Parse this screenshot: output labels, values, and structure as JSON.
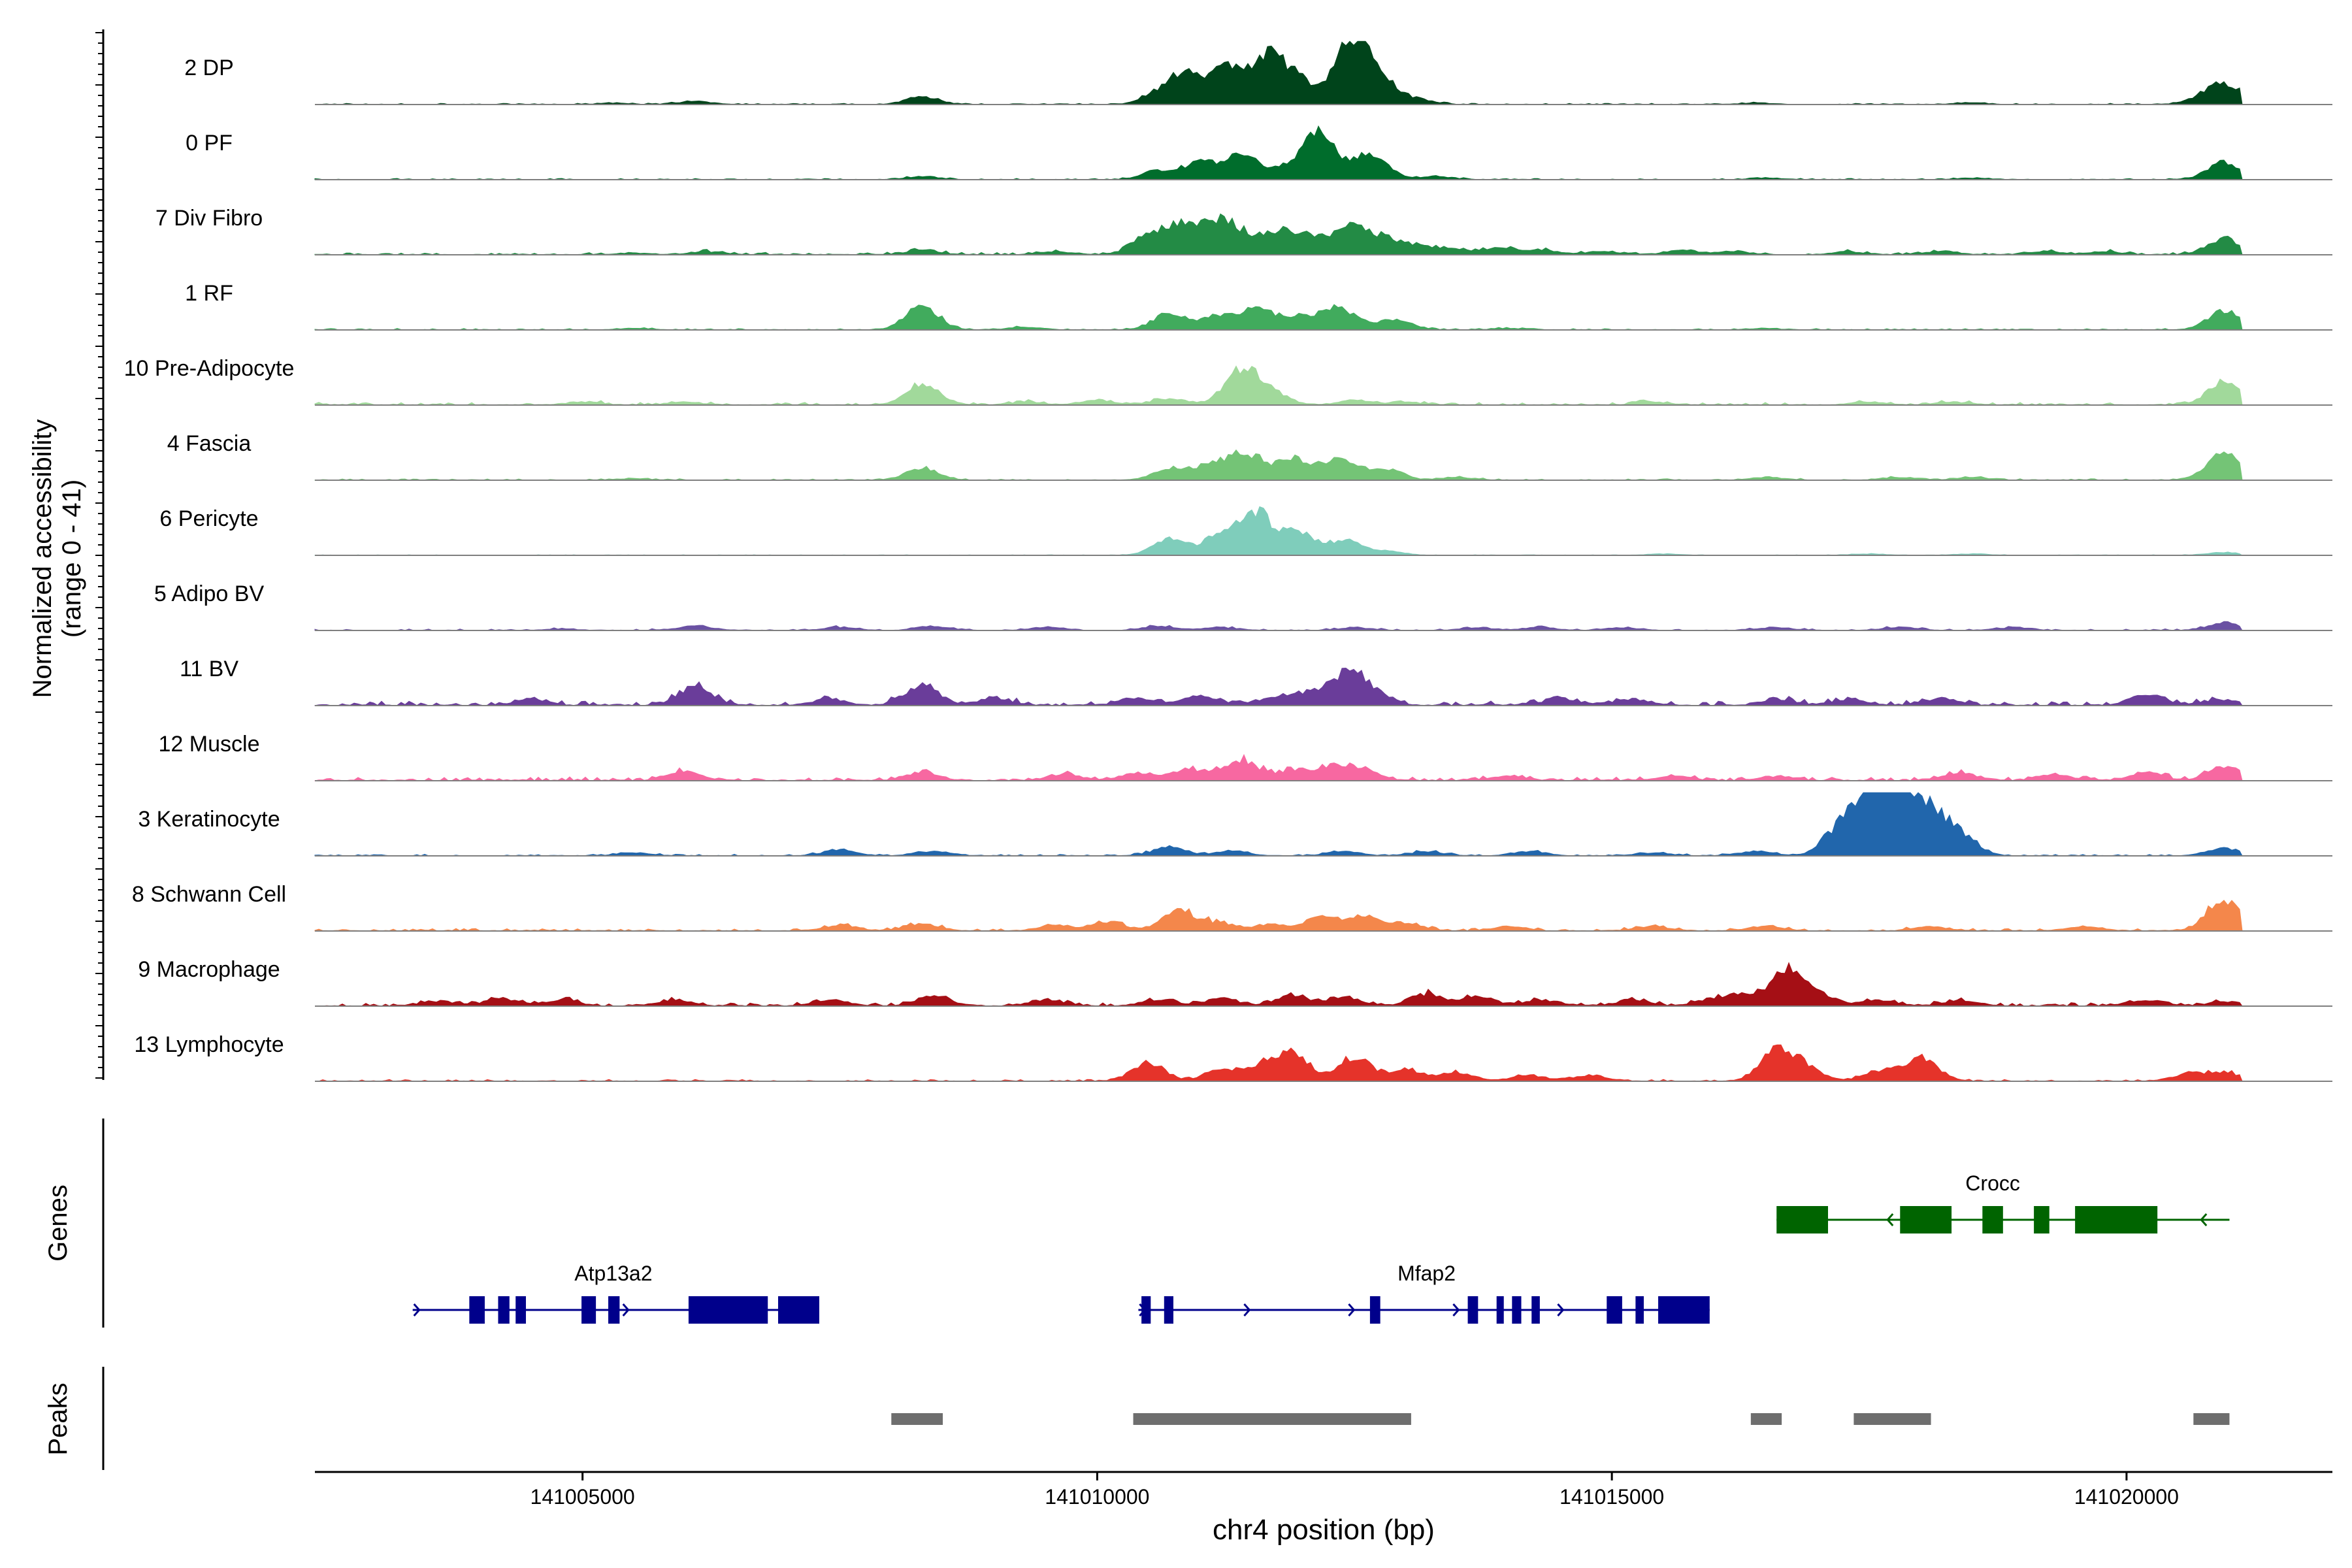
{
  "chart_data": {
    "type": "area",
    "title": "",
    "xlabel": "chr4 position (bp)",
    "ylabel": [
      "Normalized accessibility",
      "(range 0 - 41)"
    ],
    "ylim": [
      0,
      41
    ],
    "xlim": [
      141002400,
      141022000
    ],
    "x_ticks": [
      {
        "value": 141005000,
        "label": "141005000"
      },
      {
        "value": 141010000,
        "label": "141010000"
      },
      {
        "value": 141015000,
        "label": "141015000"
      },
      {
        "value": 141020000,
        "label": "141020000"
      }
    ],
    "series": [
      {
        "name": "2 DP",
        "color": "#00441b",
        "peaks": [
          [
            141005300,
            1
          ],
          [
            141006100,
            2
          ],
          [
            141008300,
            5
          ],
          [
            141010600,
            8
          ],
          [
            141010900,
            22
          ],
          [
            141011300,
            26
          ],
          [
            141011700,
            32
          ],
          [
            141012000,
            12
          ],
          [
            141012450,
            38
          ],
          [
            141012700,
            22
          ],
          [
            141013100,
            4
          ],
          [
            141016400,
            1
          ],
          [
            141018500,
            1
          ],
          [
            141020700,
            3
          ],
          [
            141020950,
            14
          ]
        ],
        "noise": 0.8
      },
      {
        "name": "0 PF",
        "color": "#006d2c",
        "peaks": [
          [
            141008300,
            2
          ],
          [
            141010600,
            6
          ],
          [
            141011000,
            12
          ],
          [
            141011400,
            16
          ],
          [
            141011800,
            6
          ],
          [
            141012150,
            34
          ],
          [
            141012650,
            18
          ],
          [
            141013300,
            2
          ],
          [
            141016500,
            1
          ],
          [
            141018500,
            1
          ],
          [
            141020950,
            12
          ]
        ],
        "noise": 0.8
      },
      {
        "name": "7 Div Fibro",
        "color": "#238b45",
        "peaks": [
          [
            141005500,
            1
          ],
          [
            141006200,
            2
          ],
          [
            141008300,
            3
          ],
          [
            141009600,
            2
          ],
          [
            141010500,
            14
          ],
          [
            141010850,
            20
          ],
          [
            141011200,
            18
          ],
          [
            141011450,
            10
          ],
          [
            141011800,
            15
          ],
          [
            141012100,
            9
          ],
          [
            141012450,
            17
          ],
          [
            141012750,
            10
          ],
          [
            141013050,
            6
          ],
          [
            141013400,
            4
          ],
          [
            141013900,
            5
          ],
          [
            141014300,
            3
          ],
          [
            141014900,
            2
          ],
          [
            141015700,
            3
          ],
          [
            141016200,
            2
          ],
          [
            141017300,
            2
          ],
          [
            141018200,
            2
          ],
          [
            141019200,
            2
          ],
          [
            141019800,
            2
          ],
          [
            141020950,
            11
          ]
        ],
        "noise": 1.6
      },
      {
        "name": "1 RF",
        "color": "#41ab5d",
        "peaks": [
          [
            141005500,
            1
          ],
          [
            141008300,
            16
          ],
          [
            141009300,
            2
          ],
          [
            141010700,
            11
          ],
          [
            141011150,
            9
          ],
          [
            141011550,
            14
          ],
          [
            141011950,
            9
          ],
          [
            141012350,
            15
          ],
          [
            141012900,
            7
          ],
          [
            141014000,
            1
          ],
          [
            141016500,
            1
          ],
          [
            141020950,
            13
          ]
        ],
        "noise": 0.9
      },
      {
        "name": "10 Pre-Adipocyte",
        "color": "#a1d99b",
        "peaks": [
          [
            141005000,
            2
          ],
          [
            141006000,
            2
          ],
          [
            141008300,
            14
          ],
          [
            141009300,
            2
          ],
          [
            141010000,
            3
          ],
          [
            141010700,
            4
          ],
          [
            141011400,
            24
          ],
          [
            141011700,
            8
          ],
          [
            141012500,
            3
          ],
          [
            141013000,
            2
          ],
          [
            141015400,
            2
          ],
          [
            141017500,
            2
          ],
          [
            141018300,
            2
          ],
          [
            141020950,
            16
          ]
        ],
        "noise": 1.8
      },
      {
        "name": "4 Fascia",
        "color": "#74c476",
        "peaks": [
          [
            141005500,
            1
          ],
          [
            141008300,
            8
          ],
          [
            141010700,
            8
          ],
          [
            141011100,
            10
          ],
          [
            141011450,
            18
          ],
          [
            141011900,
            14
          ],
          [
            141012350,
            16
          ],
          [
            141012800,
            8
          ],
          [
            141013500,
            2
          ],
          [
            141016500,
            2
          ],
          [
            141017800,
            2
          ],
          [
            141018500,
            2
          ],
          [
            141020950,
            19
          ]
        ],
        "noise": 0.9
      },
      {
        "name": "6 Pericyte",
        "color": "#7fcdbb",
        "peaks": [
          [
            141010700,
            11
          ],
          [
            141011200,
            15
          ],
          [
            141011550,
            28
          ],
          [
            141011950,
            15
          ],
          [
            141012400,
            10
          ],
          [
            141012800,
            3
          ],
          [
            141015500,
            1
          ],
          [
            141017500,
            1
          ],
          [
            141018500,
            1
          ],
          [
            141020950,
            2
          ]
        ],
        "noise": 0.4
      },
      {
        "name": "5 Adipo BV",
        "color": "#807dba",
        "peaks": [
          [
            141004800,
            1
          ],
          [
            141006100,
            3
          ],
          [
            141007500,
            2
          ],
          [
            141008400,
            3
          ],
          [
            141009500,
            2
          ],
          [
            141010600,
            3
          ],
          [
            141011200,
            2
          ],
          [
            141012500,
            2
          ],
          [
            141013700,
            2
          ],
          [
            141014300,
            2
          ],
          [
            141015100,
            2
          ],
          [
            141016600,
            2
          ],
          [
            141017800,
            2
          ],
          [
            141018900,
            2
          ],
          [
            141020950,
            5
          ]
        ],
        "noise": 1.0,
        "color_override": "#6a51a3"
      },
      {
        "name": "11 BV",
        "color": "#6a3d9a",
        "peaks": [
          [
            141004500,
            4
          ],
          [
            141006100,
            13
          ],
          [
            141007400,
            4
          ],
          [
            141008300,
            14
          ],
          [
            141009000,
            5
          ],
          [
            141010400,
            5
          ],
          [
            141011000,
            7
          ],
          [
            141011700,
            5
          ],
          [
            141012100,
            9
          ],
          [
            141012450,
            21
          ],
          [
            141012700,
            6
          ],
          [
            141014500,
            5
          ],
          [
            141015200,
            4
          ],
          [
            141016600,
            4
          ],
          [
            141017300,
            4
          ],
          [
            141018200,
            5
          ],
          [
            141020200,
            7
          ],
          [
            141020900,
            4
          ]
        ],
        "noise": 3.0
      },
      {
        "name": "12 Muscle",
        "color": "#f768a1",
        "peaks": [
          [
            141006000,
            6
          ],
          [
            141008300,
            6
          ],
          [
            141009700,
            4
          ],
          [
            141010400,
            5
          ],
          [
            141010900,
            8
          ],
          [
            141011400,
            14
          ],
          [
            141011900,
            7
          ],
          [
            141012300,
            9
          ],
          [
            141012600,
            6
          ],
          [
            141014000,
            3
          ],
          [
            141015600,
            3
          ],
          [
            141016600,
            3
          ],
          [
            141018400,
            5
          ],
          [
            141019300,
            4
          ],
          [
            141020200,
            5
          ],
          [
            141020950,
            10
          ]
        ],
        "noise": 2.5,
        "color_override": "#f768a1"
      },
      {
        "name": "3 Keratinocyte",
        "color": "#2166ac",
        "peaks": [
          [
            141005500,
            2
          ],
          [
            141007500,
            4
          ],
          [
            141008400,
            3
          ],
          [
            141010700,
            6
          ],
          [
            141011300,
            3
          ],
          [
            141012400,
            3
          ],
          [
            141013200,
            3
          ],
          [
            141014200,
            3
          ],
          [
            141015400,
            2
          ],
          [
            141016400,
            3
          ],
          [
            141017200,
            16
          ],
          [
            141017500,
            44
          ],
          [
            141017800,
            38
          ],
          [
            141018100,
            28
          ],
          [
            141018400,
            12
          ],
          [
            141020950,
            5
          ]
        ],
        "noise": 1.0
      },
      {
        "name": "8 Schwann Cell",
        "color": "#f4874b",
        "peaks": [
          [
            141007500,
            4
          ],
          [
            141008300,
            5
          ],
          [
            141009600,
            4
          ],
          [
            141010100,
            6
          ],
          [
            141010800,
            14
          ],
          [
            141011200,
            5
          ],
          [
            141011700,
            4
          ],
          [
            141012200,
            10
          ],
          [
            141012600,
            9
          ],
          [
            141013000,
            5
          ],
          [
            141014000,
            3
          ],
          [
            141015400,
            3
          ],
          [
            141016500,
            3
          ],
          [
            141018100,
            3
          ],
          [
            141019600,
            3
          ],
          [
            141020950,
            22
          ]
        ],
        "noise": 1.8
      },
      {
        "name": "9 Macrophage",
        "color": "#a50f15",
        "peaks": [
          [
            141003600,
            3
          ],
          [
            141004200,
            5
          ],
          [
            141004800,
            4
          ],
          [
            141005900,
            4
          ],
          [
            141007400,
            4
          ],
          [
            141008400,
            7
          ],
          [
            141009500,
            4
          ],
          [
            141010600,
            4
          ],
          [
            141011200,
            5
          ],
          [
            141011900,
            7
          ],
          [
            141012400,
            6
          ],
          [
            141013200,
            8
          ],
          [
            141013700,
            6
          ],
          [
            141014300,
            4
          ],
          [
            141015200,
            4
          ],
          [
            141016000,
            5
          ],
          [
            141016300,
            6
          ],
          [
            141016700,
            24
          ],
          [
            141017000,
            8
          ],
          [
            141017600,
            4
          ],
          [
            141018400,
            4
          ],
          [
            141020200,
            4
          ],
          [
            141020950,
            3
          ]
        ],
        "noise": 2.2
      },
      {
        "name": "13 Lymphocyte",
        "color": "#e5332a",
        "peaks": [
          [
            141010500,
            12
          ],
          [
            141011200,
            8
          ],
          [
            141011600,
            10
          ],
          [
            141011900,
            18
          ],
          [
            141012500,
            16
          ],
          [
            141013000,
            8
          ],
          [
            141013500,
            6
          ],
          [
            141014200,
            4
          ],
          [
            141014800,
            4
          ],
          [
            141016600,
            22
          ],
          [
            141016900,
            8
          ],
          [
            141017600,
            7
          ],
          [
            141018000,
            16
          ],
          [
            141020600,
            5
          ],
          [
            141020950,
            6
          ]
        ],
        "noise": 1.2
      }
    ],
    "genes": [
      {
        "name": "Atp13a2",
        "strand": "+",
        "start": 141003350,
        "end": 141007300,
        "color": "#00008b",
        "exons": [
          [
            141003900,
            141004050
          ],
          [
            141004180,
            141004290
          ],
          [
            141004350,
            141004450
          ],
          [
            141004990,
            141005130
          ],
          [
            141005250,
            141005360
          ],
          [
            141006030,
            141006800
          ],
          [
            141006900,
            141007300
          ]
        ]
      },
      {
        "name": "Mfap2",
        "strand": "+",
        "start": 141010400,
        "end": 141015950,
        "color": "#00008b",
        "exons": [
          [
            141010430,
            141010520
          ],
          [
            141010650,
            141010740
          ],
          [
            141012650,
            141012750
          ],
          [
            141013600,
            141013700
          ],
          [
            141013880,
            141013950
          ],
          [
            141014030,
            141014120
          ],
          [
            141014220,
            141014300
          ],
          [
            141014950,
            141015100
          ],
          [
            141015230,
            141015310
          ],
          [
            141015450,
            141015950
          ]
        ]
      },
      {
        "name": "Crocc",
        "strand": "-",
        "start": 141016600,
        "end": 141021000,
        "color": "#006400",
        "exons": [
          [
            141016600,
            141017100
          ],
          [
            141017800,
            141018300
          ],
          [
            141018600,
            141018800
          ],
          [
            141019100,
            141019250
          ],
          [
            141019500,
            141020300
          ]
        ]
      }
    ],
    "peak_regions": [
      [
        141008000,
        141008500
      ],
      [
        141010350,
        141013050
      ],
      [
        141016350,
        141016650
      ],
      [
        141017350,
        141018100
      ],
      [
        141020650,
        141021000
      ]
    ],
    "panel_labels": {
      "genes": "Genes",
      "peaks": "Peaks"
    }
  }
}
